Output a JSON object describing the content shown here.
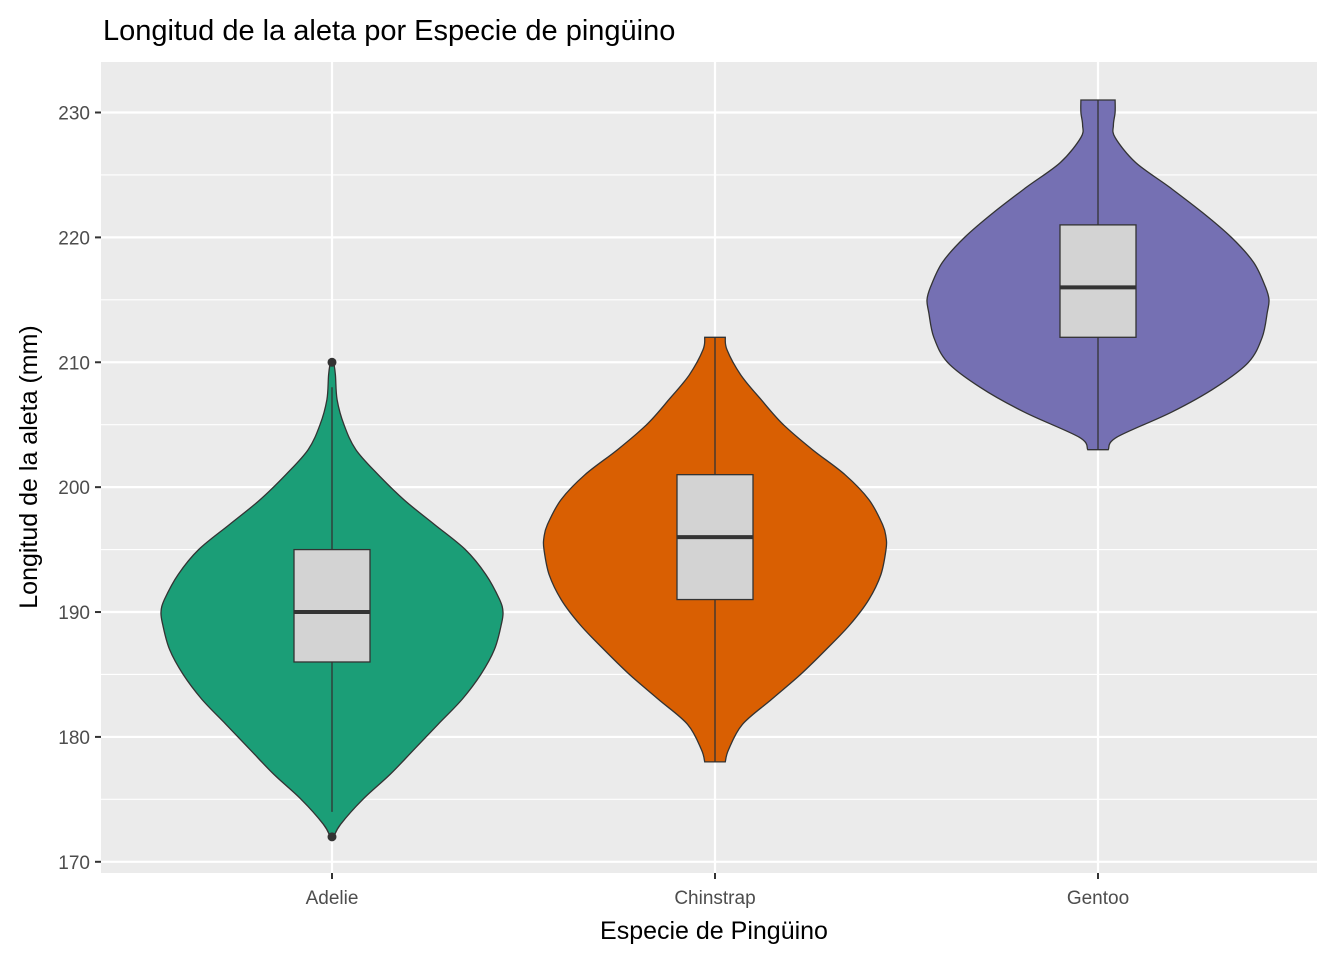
{
  "chart_data": {
    "type": "violin",
    "title": "Longitud de la aleta por Especie de pingüino",
    "xlabel": "Especie de Pingüino",
    "ylabel": "Longitud de la aleta (mm)",
    "categories": [
      "Adelie",
      "Chinstrap",
      "Gentoo"
    ],
    "ylim": [
      169,
      234
    ],
    "yticks": [
      170,
      180,
      190,
      200,
      210,
      220,
      230
    ],
    "grid": true,
    "legend": "none",
    "colors": {
      "panel_bg": "#ebebeb",
      "grid": "#ffffff",
      "box_fill": "#d3d3d3",
      "outline": "#333333"
    },
    "series": [
      {
        "category": "Adelie",
        "color": "#1b9e77",
        "box": {
          "min": 174,
          "q1": 186,
          "median": 190,
          "q3": 195,
          "max": 208
        },
        "outliers": [
          172,
          210
        ],
        "violin_range": [
          172,
          210
        ],
        "density_y": [
          172,
          173,
          175,
          177,
          179,
          181,
          183,
          185,
          187,
          189,
          190,
          191,
          193,
          195,
          197,
          199,
          201,
          203,
          205,
          207,
          209,
          210
        ],
        "density_w": [
          0.01,
          0.05,
          0.18,
          0.34,
          0.48,
          0.62,
          0.76,
          0.87,
          0.95,
          0.99,
          1.0,
          0.98,
          0.9,
          0.78,
          0.6,
          0.42,
          0.27,
          0.14,
          0.07,
          0.03,
          0.02,
          0.01
        ]
      },
      {
        "category": "Chinstrap",
        "color": "#d95f02",
        "box": {
          "min": 178,
          "q1": 191,
          "median": 196,
          "q3": 201,
          "max": 212
        },
        "outliers": [],
        "violin_range": [
          178,
          212
        ],
        "density_y": [
          178,
          179,
          181,
          183,
          185,
          187,
          189,
          191,
          193,
          195,
          196,
          197,
          199,
          201,
          203,
          205,
          207,
          209,
          211,
          212
        ],
        "density_w": [
          0.06,
          0.08,
          0.16,
          0.33,
          0.5,
          0.65,
          0.79,
          0.9,
          0.97,
          1.0,
          1.0,
          0.98,
          0.9,
          0.76,
          0.57,
          0.4,
          0.27,
          0.15,
          0.07,
          0.06
        ]
      },
      {
        "category": "Gentoo",
        "color": "#7570b3",
        "box": {
          "min": 203,
          "q1": 212,
          "median": 216,
          "q3": 221,
          "max": 231
        },
        "outliers": [],
        "violin_range": [
          203,
          231
        ],
        "density_y": [
          203,
          204,
          206,
          208,
          210,
          212,
          214,
          215,
          216,
          218,
          220,
          222,
          224,
          226,
          228,
          229,
          230,
          231
        ],
        "density_w": [
          0.06,
          0.11,
          0.43,
          0.69,
          0.88,
          0.96,
          0.99,
          1.0,
          0.98,
          0.91,
          0.78,
          0.61,
          0.42,
          0.22,
          0.1,
          0.09,
          0.1,
          0.1
        ]
      }
    ]
  }
}
